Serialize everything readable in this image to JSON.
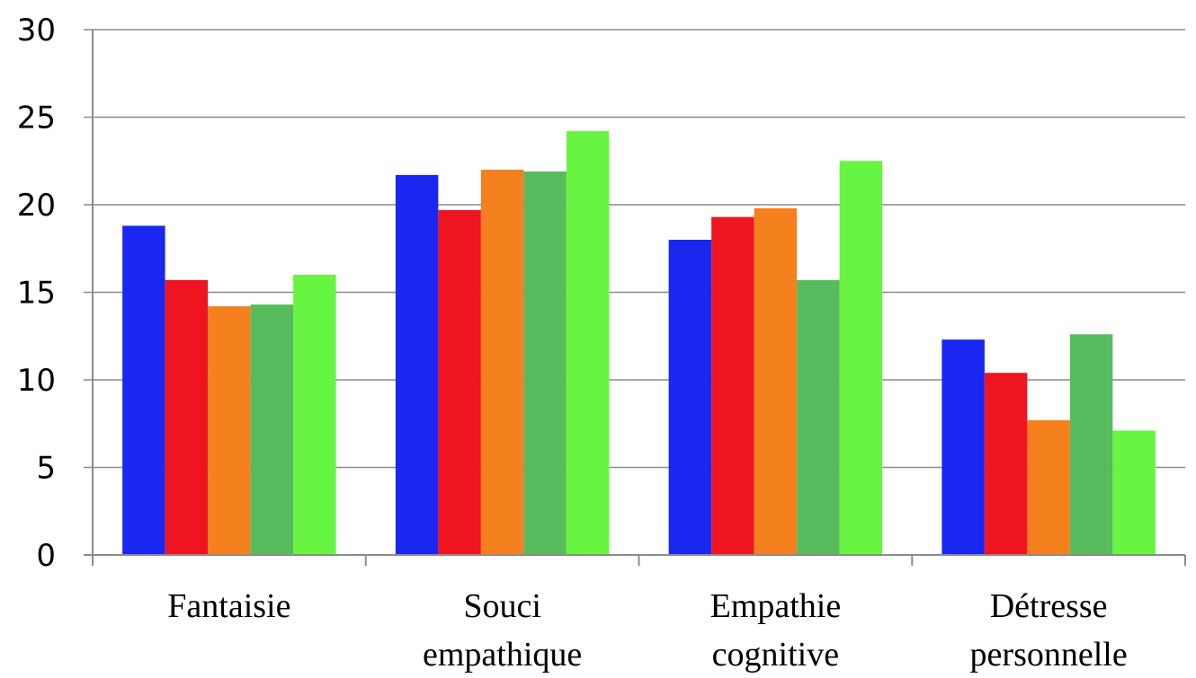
{
  "chart_data": {
    "type": "bar",
    "categories": [
      [
        "Fantaisie"
      ],
      [
        "Souci",
        "empathique"
      ],
      [
        "Empathie",
        "cognitive"
      ],
      [
        "Détresse",
        "personnelle"
      ]
    ],
    "series": [
      {
        "color": "#1a27f0",
        "values": [
          18.8,
          21.7,
          18.0,
          12.3
        ]
      },
      {
        "color": "#ee1520",
        "values": [
          15.7,
          19.7,
          19.3,
          10.4
        ]
      },
      {
        "color": "#f5801e",
        "values": [
          14.2,
          22.0,
          19.8,
          7.7
        ]
      },
      {
        "color": "#58bb5e",
        "values": [
          14.3,
          21.9,
          15.7,
          12.6
        ]
      },
      {
        "color": "#67f541",
        "values": [
          16.0,
          24.2,
          22.5,
          7.1
        ]
      }
    ],
    "yticks": [
      "0",
      "5",
      "10",
      "15",
      "20",
      "25",
      "30"
    ],
    "ylim": [
      0,
      30
    ],
    "grid": true,
    "legend": "none",
    "title": "",
    "xlabel": "",
    "ylabel": ""
  }
}
